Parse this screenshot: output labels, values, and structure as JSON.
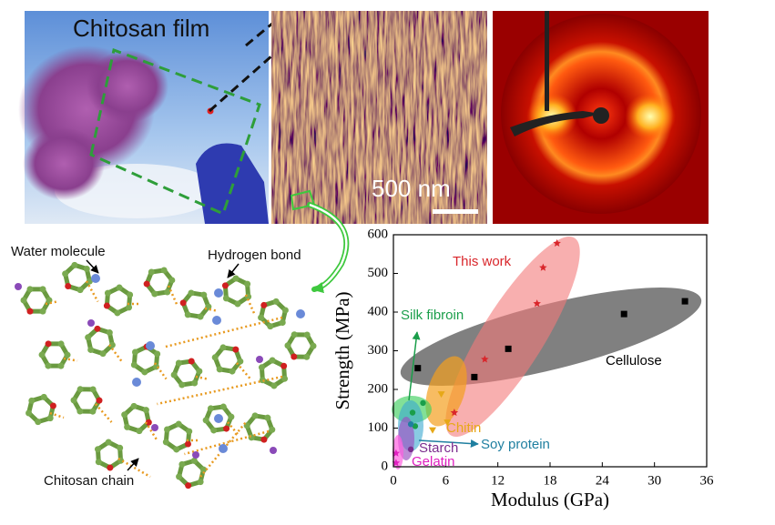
{
  "panels": {
    "photo_label": "Chitosan film",
    "scale_bar": "500 nm"
  },
  "diagram": {
    "labels": [
      "Water molecule",
      "Hydrogen bond",
      "Chitosan chain"
    ]
  },
  "chart_data": {
    "type": "scatter",
    "x_label": "Modulus (GPa)",
    "y_label": "Strength (MPa)",
    "xlim": [
      0,
      36
    ],
    "xticks": [
      0,
      6,
      12,
      18,
      24,
      30,
      36
    ],
    "ylim": [
      0,
      600
    ],
    "yticks": [
      0,
      100,
      200,
      300,
      400,
      500,
      600
    ],
    "series": [
      {
        "name": "Cellulose",
        "color": "#000000",
        "marker": "square",
        "x": [
          2.8,
          9.3,
          13.2,
          26.5,
          33.5
        ],
        "values": [
          255,
          232,
          305,
          395,
          428
        ]
      },
      {
        "name": "This work",
        "color": "#d9262b",
        "marker": "star",
        "x": [
          7,
          10.5,
          16.5,
          17.2,
          18.8
        ],
        "values": [
          140,
          278,
          422,
          515,
          578
        ]
      },
      {
        "name": "Chitin",
        "color": "#e6a817",
        "marker": "triangle",
        "x": [
          4.5,
          5.5,
          6.2
        ],
        "values": [
          95,
          188,
          115
        ]
      },
      {
        "name": "Silk fibroin",
        "color": "#1a9e4a",
        "marker": "circle",
        "x": [
          2.2,
          2.5,
          3.4
        ],
        "values": [
          140,
          105,
          165
        ]
      },
      {
        "name": "Soy protein",
        "color": "#1f7fa0",
        "marker": "circle",
        "x": [
          2
        ],
        "values": [
          110
        ]
      },
      {
        "name": "Starch",
        "color": "#7b2d8e",
        "marker": "circle",
        "x": [
          2
        ],
        "values": [
          45
        ]
      },
      {
        "name": "Gelatin",
        "color": "#e020c0",
        "marker": "star",
        "x": [
          0.3,
          0.3
        ],
        "values": [
          35,
          10
        ]
      }
    ]
  }
}
